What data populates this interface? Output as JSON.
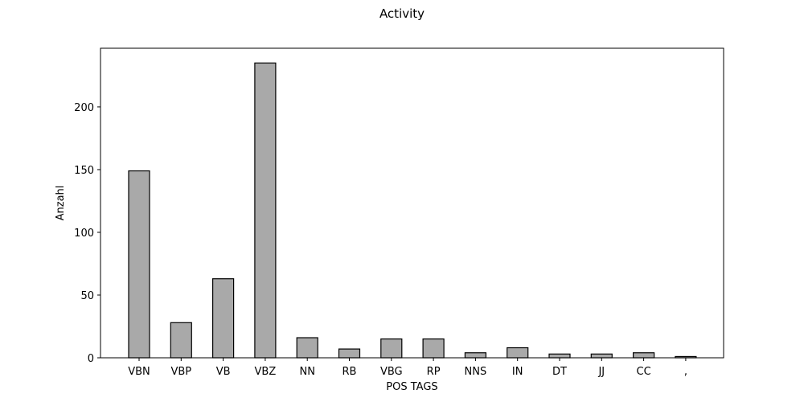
{
  "chart_data": {
    "type": "bar",
    "title": "Activity",
    "xlabel": "POS TAGS",
    "ylabel": "Anzahl",
    "categories": [
      "VBN",
      "VBP",
      "VB",
      "VBZ",
      "NN",
      "RB",
      "VBG",
      "RP",
      "NNS",
      "IN",
      "DT",
      "JJ",
      "CC",
      ","
    ],
    "values": [
      149,
      28,
      63,
      235,
      16,
      7,
      15,
      15,
      4,
      8,
      3,
      3,
      4,
      1
    ],
    "ylim": [
      0,
      246.75
    ],
    "yticks": [
      0,
      50,
      100,
      150,
      200
    ],
    "bar_color": "#a9a9a9",
    "edge_color": "#000000",
    "grid": false,
    "legend": false
  }
}
